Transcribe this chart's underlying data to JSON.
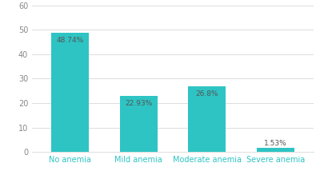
{
  "categories": [
    "No anemia",
    "Mild anemia",
    "Moderate anemia",
    "Severe anemia"
  ],
  "values": [
    48.74,
    22.93,
    26.8,
    1.53
  ],
  "labels": [
    "48.74%",
    "22.93%",
    "26.8%",
    "1.53%"
  ],
  "bar_color": "#2ec4c4",
  "bar_edge_color": "none",
  "ylim": [
    0,
    60
  ],
  "yticks": [
    0,
    10,
    20,
    30,
    40,
    50,
    60
  ],
  "background_color": "#ffffff",
  "grid_color": "#d0d0d0",
  "tick_label_color": "#888888",
  "bar_label_color": "#555555",
  "bar_label_fontsize": 6.5,
  "tick_fontsize": 7,
  "cat_label_fontsize": 7,
  "cat_label_color": "#2ec4c4",
  "bar_width": 0.55
}
